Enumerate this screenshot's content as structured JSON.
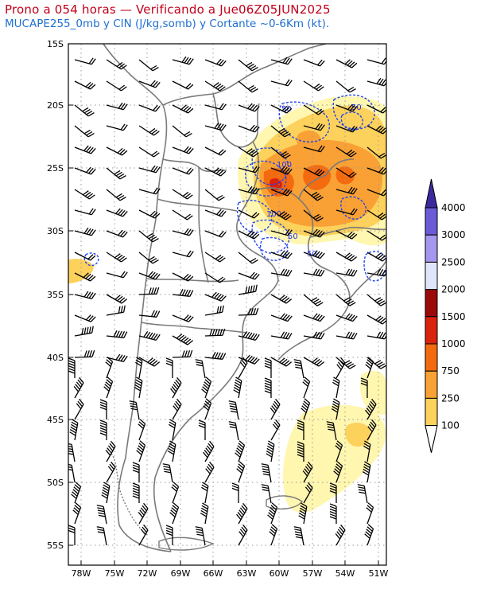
{
  "header": {
    "title": "Prono a 054 horas — Verificando a Jue06Z05JUN2025",
    "subtitle": "MUCAPE255_0mb y CIN (J/kg,somb) y Cortante ~0-6Km (kt)."
  },
  "axes": {
    "lat_labels": [
      "15S",
      "20S",
      "25S",
      "30S",
      "35S",
      "40S",
      "45S",
      "50S",
      "55S"
    ],
    "lon_labels": [
      "78W",
      "75W",
      "72W",
      "69W",
      "66W",
      "63W",
      "60W",
      "57W",
      "54W",
      "51W"
    ]
  },
  "colorbar": {
    "levels": [
      "100",
      "250",
      "750",
      "1000",
      "1500",
      "2000",
      "2500",
      "3000",
      "4000"
    ],
    "colors": [
      "#fff6b0",
      "#fcd15c",
      "#f9a134",
      "#f46a0f",
      "#d9230c",
      "#9b0909",
      "#dfe6fb",
      "#a596ee",
      "#6a5bd6",
      "#3a2a9e"
    ]
  },
  "cin_labels": [
    "50",
    "50",
    "100",
    "100",
    "50",
    "50"
  ],
  "colors": {
    "title": "#c0001a",
    "subtitle": "#1f6fd0",
    "cin_contour": "#2244ee",
    "border": "#7a7a7a"
  }
}
